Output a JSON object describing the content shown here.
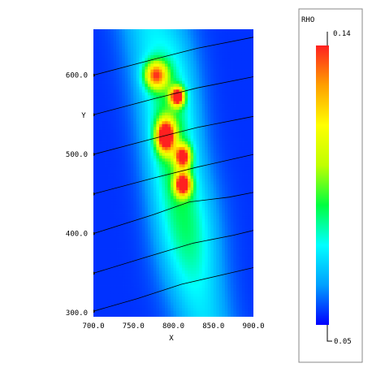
{
  "chart_data": {
    "type": "heatmap",
    "variable": "RHO",
    "xlabel": "X",
    "ylabel": "Y",
    "xlim": [
      700,
      900
    ],
    "ylim": [
      295,
      658
    ],
    "xticks": [
      "700.0",
      "750.0",
      "800.0",
      "850.0",
      "900.0"
    ],
    "yticks": [
      "300.0",
      "400.0",
      "500.0",
      "600.0"
    ],
    "colorbar": {
      "min": 0.05,
      "max": 0.14,
      "min_label": "0.05",
      "max_label": "0.14",
      "colors": [
        "#0000ff",
        "#00a0ff",
        "#00ffff",
        "#00ff40",
        "#c0ff00",
        "#ffff00",
        "#ffa000",
        "#ff2020"
      ]
    },
    "density_blobs": [
      {
        "x": 778,
        "y": 600,
        "sx": 10,
        "sy": 12,
        "v": 0.06
      },
      {
        "x": 805,
        "y": 573,
        "sx": 6,
        "sy": 8,
        "v": 0.085
      },
      {
        "x": 790,
        "y": 523,
        "sx": 8,
        "sy": 14,
        "v": 0.085
      },
      {
        "x": 812,
        "y": 497,
        "sx": 7,
        "sy": 10,
        "v": 0.07
      },
      {
        "x": 812,
        "y": 462,
        "sx": 7,
        "sy": 10,
        "v": 0.08
      },
      {
        "x": 800,
        "y": 540,
        "sx": 22,
        "sy": 85,
        "v": 0.02
      },
      {
        "x": 820,
        "y": 400,
        "sx": 26,
        "sy": 55,
        "v": 0.012
      }
    ],
    "contour_lines": [
      [
        [
          700,
          302
        ],
        [
          755,
          318
        ],
        [
          810,
          336
        ],
        [
          870,
          350
        ],
        [
          900,
          357
        ]
      ],
      [
        [
          700,
          350
        ],
        [
          765,
          370
        ],
        [
          825,
          388
        ],
        [
          875,
          398
        ],
        [
          900,
          404
        ]
      ],
      [
        [
          700,
          400
        ],
        [
          775,
          424
        ],
        [
          820,
          440
        ],
        [
          870,
          446
        ],
        [
          900,
          452
        ]
      ],
      [
        [
          700,
          450
        ],
        [
          775,
          470
        ],
        [
          830,
          484
        ],
        [
          900,
          500
        ]
      ],
      [
        [
          700,
          500
        ],
        [
          775,
          520
        ],
        [
          830,
          534
        ],
        [
          900,
          548
        ]
      ],
      [
        [
          700,
          550
        ],
        [
          775,
          570
        ],
        [
          830,
          584
        ],
        [
          900,
          598
        ]
      ],
      [
        [
          700,
          600
        ],
        [
          775,
          620
        ],
        [
          830,
          634
        ],
        [
          900,
          648
        ]
      ]
    ]
  }
}
